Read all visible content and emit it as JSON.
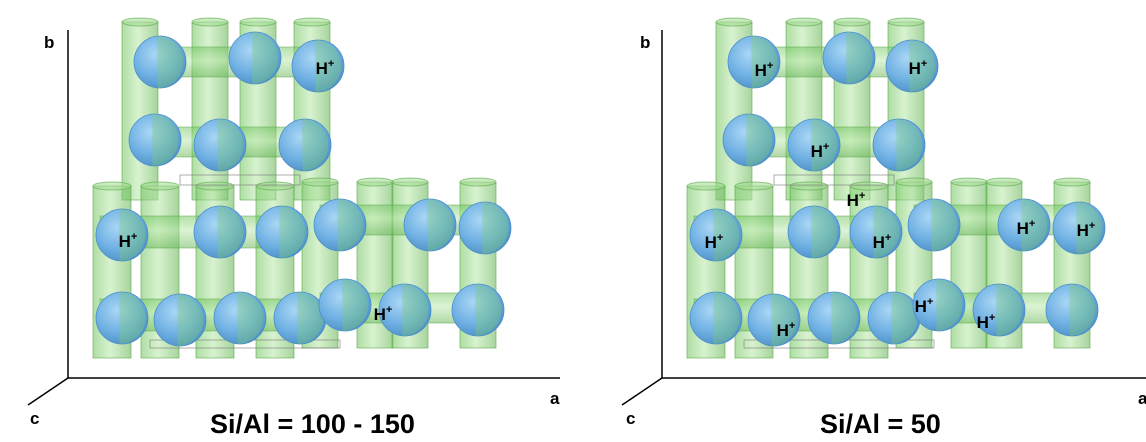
{
  "panels": [
    {
      "axis_b": "b",
      "axis_a": "a",
      "axis_c": "c",
      "caption": "Si/Al = 100 - 150",
      "proton_label": "H",
      "proton_charge": "+"
    },
    {
      "axis_b": "b",
      "axis_a": "a",
      "axis_c": "c",
      "caption": "Si/Al = 50",
      "proton_label": "H",
      "proton_charge": "+"
    }
  ],
  "colors": {
    "channel": "#7fcf6a",
    "channel_edge": "#5aa84a",
    "sphere": "#72b6e8",
    "sphere_dark": "#4a8fc9",
    "axis": "#000000"
  }
}
